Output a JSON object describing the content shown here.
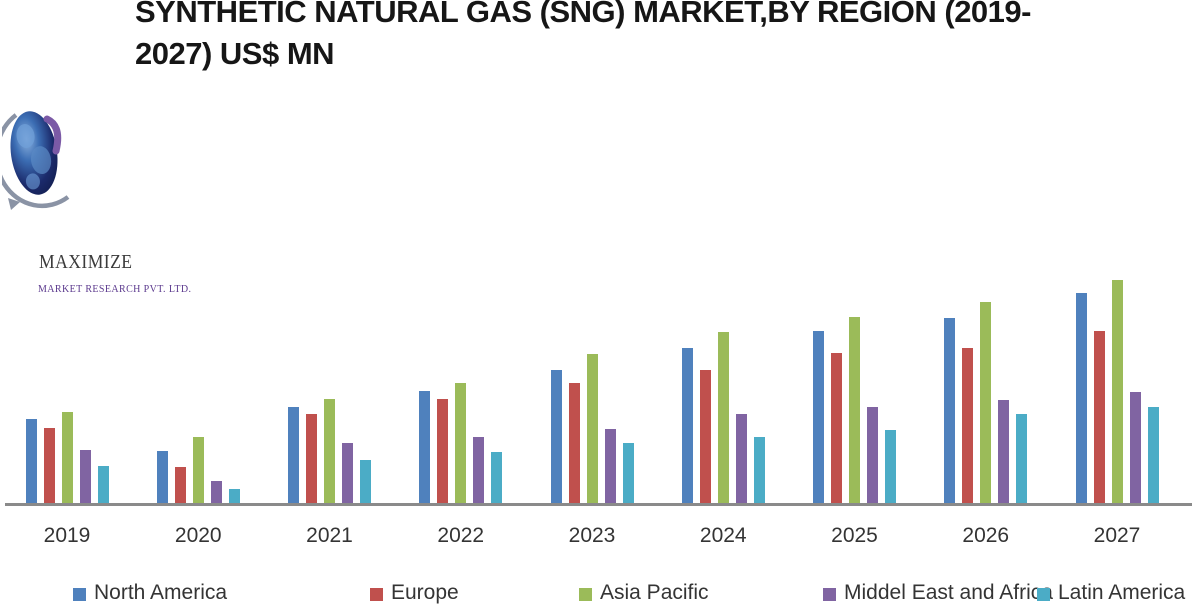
{
  "title": {
    "text": "SYNTHETIC NATURAL GAS (SNG) MARKET,BY REGION (2019-2027) US$ MN",
    "line1": "SYNTHETIC NATURAL GAS (SNG) MARKET,BY REGION (2019-",
    "line2": "2027) US$ MN"
  },
  "logo": {
    "name": "MAXIMIZE",
    "tagline": "MARKET RESEARCH PVT. LTD.",
    "icon": "globe-orbit-icon",
    "colors": {
      "globe_dark": "#1b2a6b",
      "globe_mid": "#3c6eb4",
      "globe_light": "#7fa8d9",
      "swoosh_purple": "#7b5aa6",
      "orbit_gray": "#8a93a5",
      "name_color": "#3b3b3b",
      "tagline_color": "#5c3a8e"
    }
  },
  "chart_data": {
    "type": "bar",
    "title": "SYNTHETIC NATURAL GAS (SNG) MARKET,BY REGION (2019-2027) US$ MN",
    "ylabel": "US$ MN",
    "xlabel": "",
    "categories": [
      "2019",
      "2020",
      "2021",
      "2022",
      "2023",
      "2024",
      "2025",
      "2026",
      "2027"
    ],
    "series": [
      {
        "name": "North America",
        "color": "#4f81bd",
        "values": [
          84,
          52,
          96,
          112,
          133,
          155,
          172,
          185,
          210
        ]
      },
      {
        "name": "Europe",
        "color": "#c0504d",
        "values": [
          75,
          36,
          89,
          104,
          120,
          133,
          150,
          155,
          172
        ]
      },
      {
        "name": "Asia Pacific",
        "color": "#9bbb59",
        "values": [
          91,
          66,
          104,
          120,
          149,
          171,
          186,
          201,
          223
        ]
      },
      {
        "name": "Middel East and Africa",
        "color": "#8064a2",
        "values": [
          53,
          22,
          60,
          66,
          74,
          89,
          96,
          103,
          111
        ]
      },
      {
        "name": "Latin America",
        "color": "#4bacc6",
        "values": [
          37,
          14,
          43,
          51,
          60,
          66,
          73,
          89,
          96
        ]
      }
    ],
    "ylim": [
      0,
      240
    ],
    "grid": false,
    "y_axis_visible": false,
    "legend_position": "bottom",
    "note": "Chart shows no y-axis or data labels; series values are relative estimates proportional to rendered bar heights (arbitrary units)."
  }
}
